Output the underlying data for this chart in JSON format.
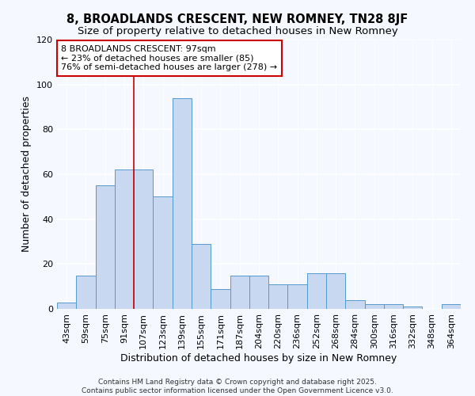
{
  "title": "8, BROADLANDS CRESCENT, NEW ROMNEY, TN28 8JF",
  "subtitle": "Size of property relative to detached houses in New Romney",
  "xlabel": "Distribution of detached houses by size in New Romney",
  "ylabel": "Number of detached properties",
  "categories": [
    "43sqm",
    "59sqm",
    "75sqm",
    "91sqm",
    "107sqm",
    "123sqm",
    "139sqm",
    "155sqm",
    "171sqm",
    "187sqm",
    "204sqm",
    "220sqm",
    "236sqm",
    "252sqm",
    "268sqm",
    "284sqm",
    "300sqm",
    "316sqm",
    "332sqm",
    "348sqm",
    "364sqm"
  ],
  "values": [
    3,
    15,
    55,
    62,
    62,
    50,
    94,
    29,
    9,
    15,
    15,
    11,
    11,
    16,
    16,
    4,
    2,
    2,
    1,
    0,
    2
  ],
  "bar_color": "#c8d8f0",
  "bar_edge_color": "#5599cc",
  "bar_edge_width": 0.7,
  "background_color": "#f5f8ff",
  "plot_bg_color": "#f5f8ff",
  "grid_color": "#ffffff",
  "redline_x": 3.5,
  "annotation_line1": "8 BROADLANDS CRESCENT: 97sqm",
  "annotation_line2": "← 23% of detached houses are smaller (85)",
  "annotation_line3": "76% of semi-detached houses are larger (278) →",
  "annotation_box_color": "#ffffff",
  "annotation_box_edge": "#cc0000",
  "redline_color": "#cc0000",
  "ylim": [
    0,
    120
  ],
  "yticks": [
    0,
    20,
    40,
    60,
    80,
    100,
    120
  ],
  "footer_line1": "Contains HM Land Registry data © Crown copyright and database right 2025.",
  "footer_line2": "Contains public sector information licensed under the Open Government Licence v3.0.",
  "title_fontsize": 10.5,
  "subtitle_fontsize": 9.5,
  "annot_fontsize": 8,
  "tick_fontsize": 8,
  "ylabel_fontsize": 9,
  "xlabel_fontsize": 9,
  "footer_fontsize": 6.5
}
